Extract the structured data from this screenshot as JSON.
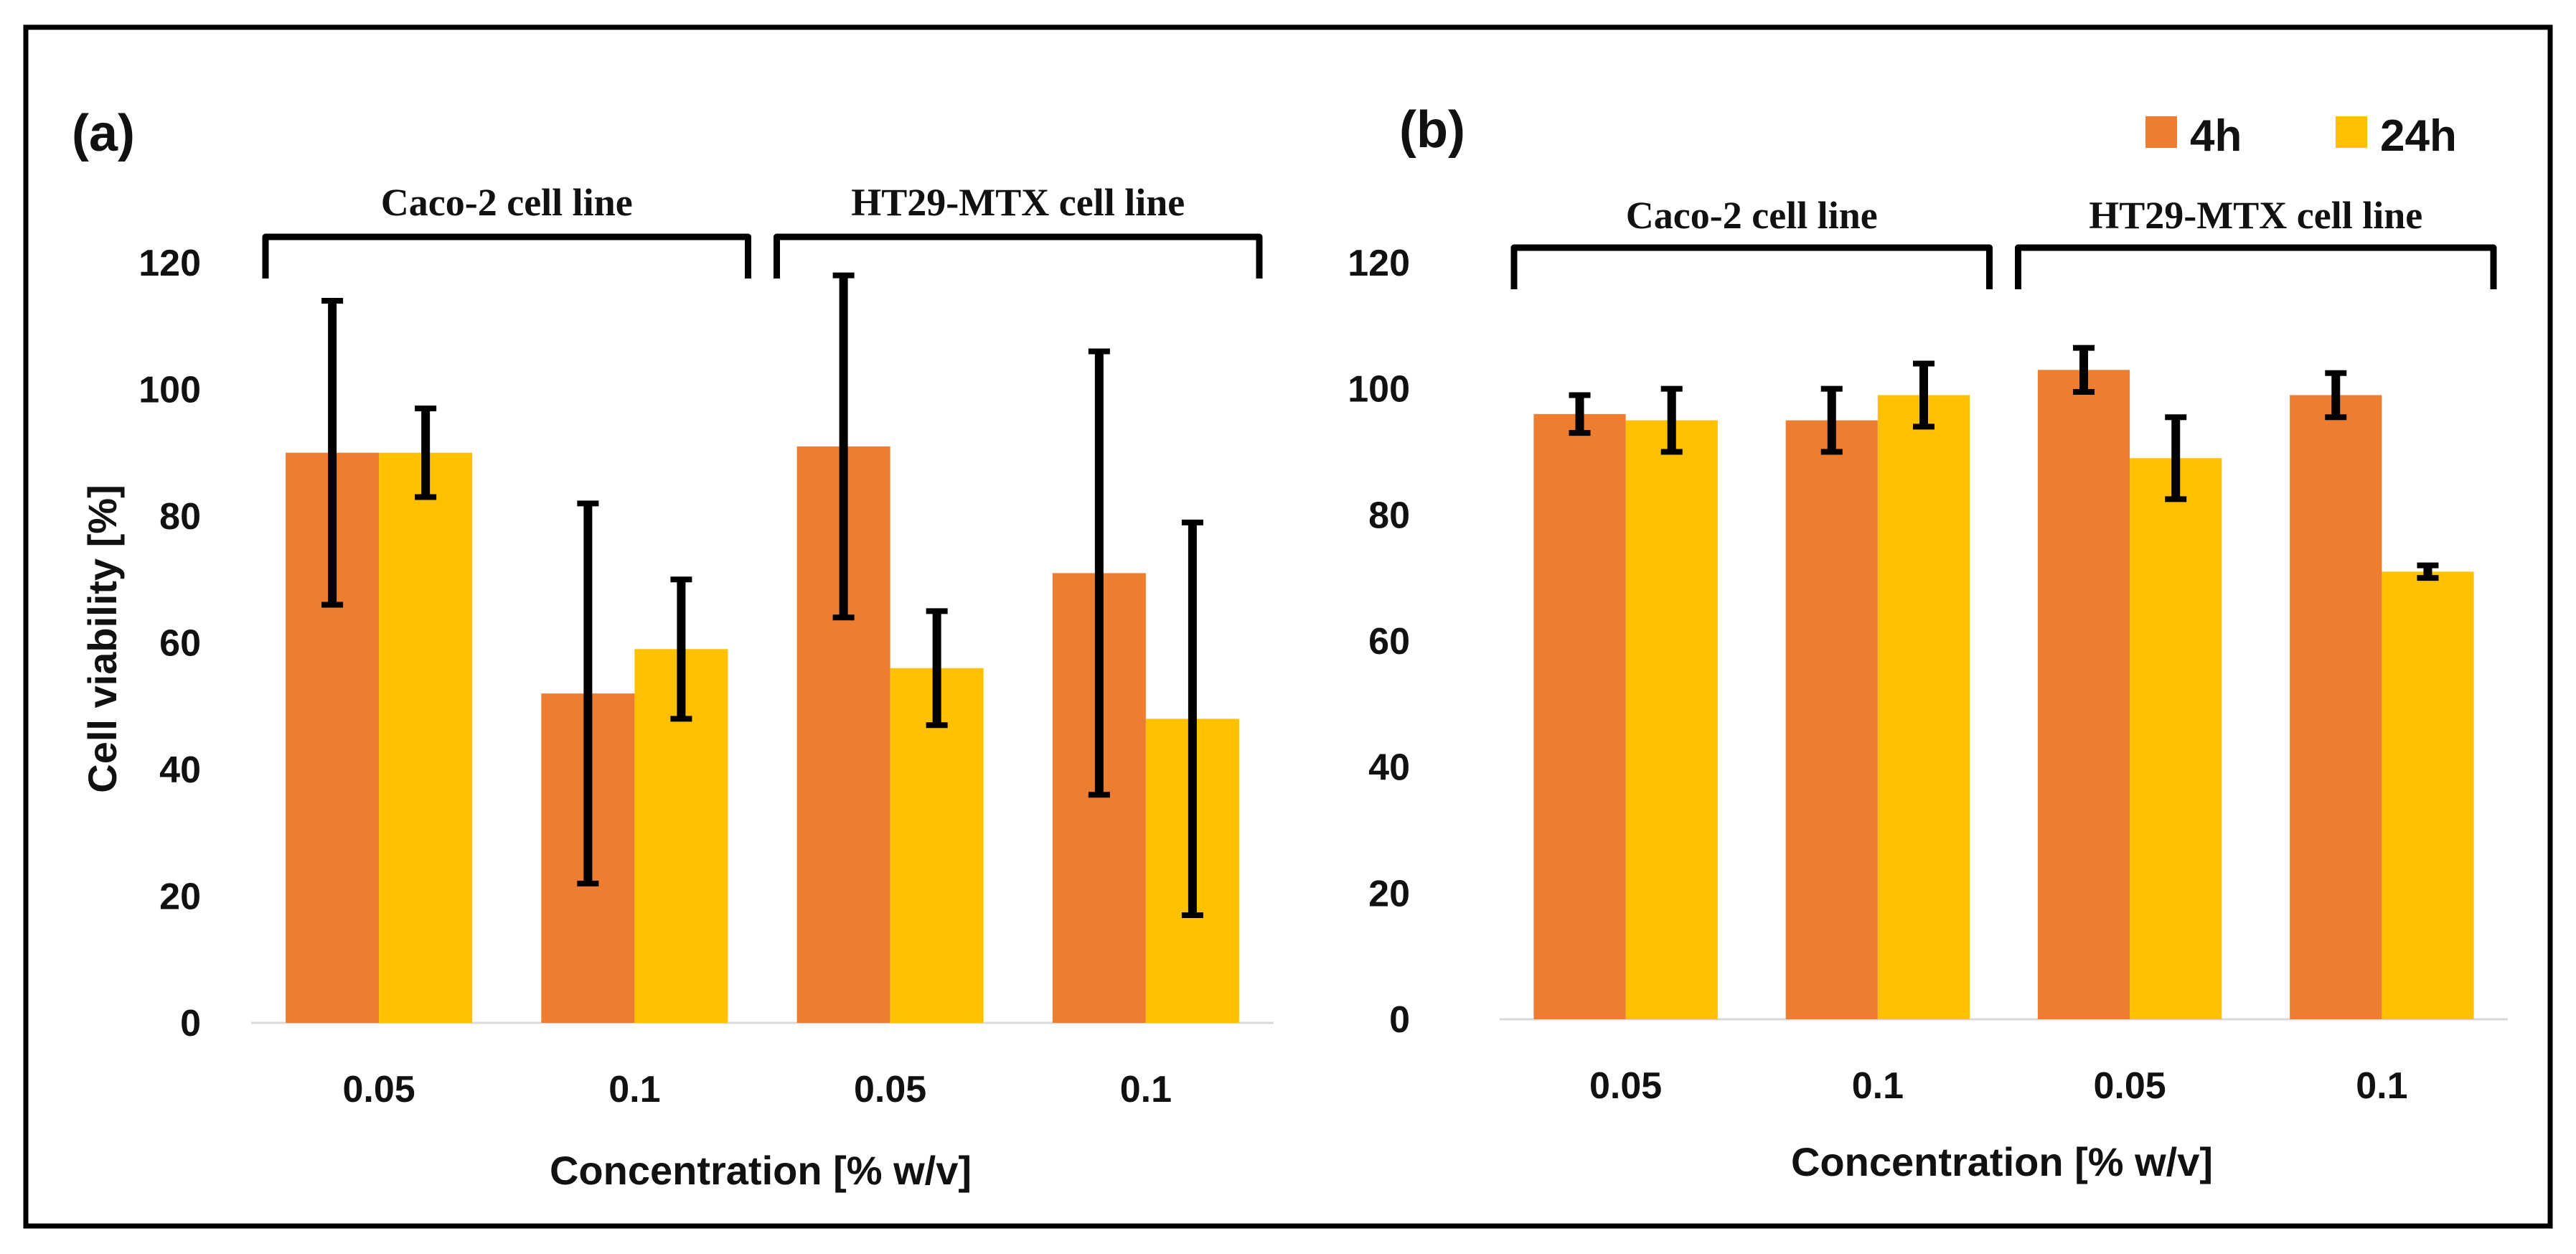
{
  "chart_data": [
    {
      "panel": "(a)",
      "type": "bar",
      "ylabel": "Cell viability [%]",
      "xlabel": "Concentration  [% w/v]",
      "ylim": [
        0,
        120
      ],
      "yticks": [
        0,
        20,
        40,
        60,
        80,
        100,
        120
      ],
      "groups": [
        {
          "label": "Caco-2 cell line",
          "categories": [
            "0.05",
            "0.1"
          ]
        },
        {
          "label": "HT29-MTX cell line",
          "categories": [
            "0.05",
            "0.1"
          ]
        }
      ],
      "categories": [
        "0.05",
        "0.1",
        "0.05",
        "0.1"
      ],
      "series": [
        {
          "name": "4h",
          "color": "#ED7D31",
          "values": [
            90,
            52,
            91,
            71
          ],
          "errors": [
            24,
            30,
            27,
            35
          ]
        },
        {
          "name": "24h",
          "color": "#FFC000",
          "values": [
            90,
            59,
            56,
            48
          ],
          "errors": [
            7,
            11,
            9,
            31
          ]
        }
      ]
    },
    {
      "panel": "(b)",
      "type": "bar",
      "ylabel": "",
      "xlabel": "Concentration  [% w/v]",
      "ylim": [
        0,
        120
      ],
      "yticks": [
        0,
        20,
        40,
        60,
        80,
        100,
        120
      ],
      "groups": [
        {
          "label": "Caco-2 cell line",
          "categories": [
            "0.05",
            "0.1"
          ]
        },
        {
          "label": "HT29-MTX cell line",
          "categories": [
            "0.05",
            "0.1"
          ]
        }
      ],
      "categories": [
        "0.05",
        "0.1",
        "0.05",
        "0.1"
      ],
      "series": [
        {
          "name": "4h",
          "color": "#ED7D31",
          "values": [
            96,
            95,
            103,
            99
          ],
          "errors": [
            3,
            5,
            3.5,
            3.5
          ]
        },
        {
          "name": "24h",
          "color": "#FFC000",
          "values": [
            95,
            99,
            89,
            71
          ],
          "errors": [
            5,
            5,
            6.5,
            1
          ]
        }
      ],
      "legend": {
        "position": "top-right",
        "entries": [
          "4h",
          "24h"
        ]
      }
    }
  ]
}
